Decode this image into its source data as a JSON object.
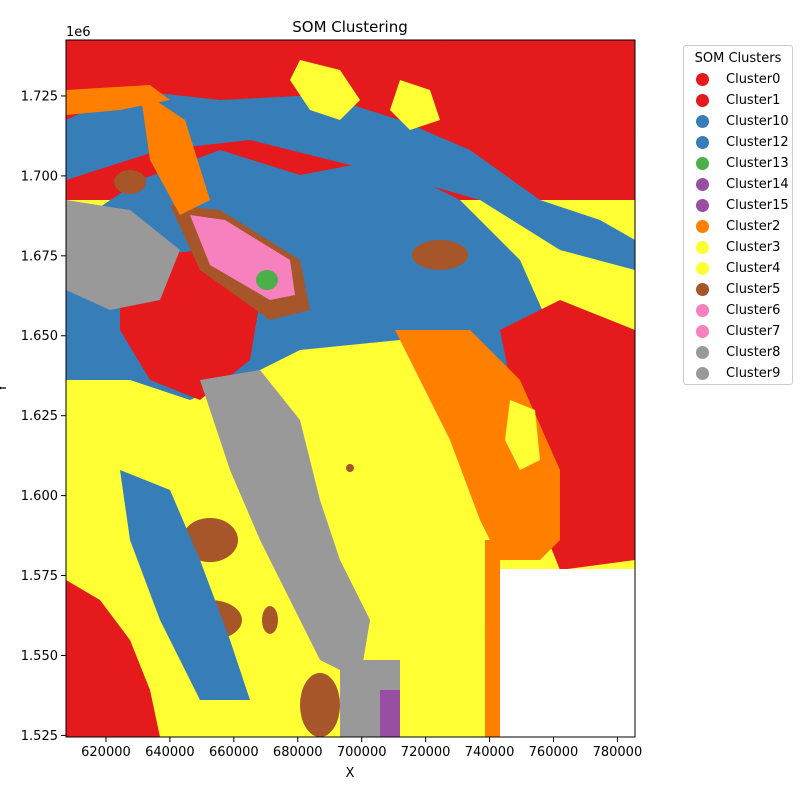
{
  "chart_data": {
    "type": "heatmap",
    "title": "SOM Clustering",
    "xlabel": "X",
    "ylabel": "Y",
    "xlim": [
      607500,
      785500
    ],
    "ylim": [
      1524500,
      1742500
    ],
    "y_offset_text": "1e6",
    "x_ticks": [
      620000,
      640000,
      660000,
      680000,
      700000,
      720000,
      740000,
      760000,
      780000
    ],
    "x_tick_labels": [
      "620000",
      "640000",
      "660000",
      "680000",
      "700000",
      "720000",
      "740000",
      "760000",
      "780000"
    ],
    "y_ticks": [
      1525000,
      1550000,
      1575000,
      1600000,
      1625000,
      1650000,
      1675000,
      1700000,
      1725000
    ],
    "y_tick_labels": [
      "1.525",
      "1.550",
      "1.575",
      "1.600",
      "1.625",
      "1.650",
      "1.675",
      "1.700",
      "1.725"
    ],
    "no_data_region": {
      "x": [
        743000,
        785500
      ],
      "y": [
        1524500,
        1577000
      ]
    },
    "legend": {
      "title": "SOM Clusters",
      "placement": "outside-right",
      "entries": [
        {
          "label": "Cluster0",
          "color": "#e41a1c"
        },
        {
          "label": "Cluster1",
          "color": "#e41a1c"
        },
        {
          "label": "Cluster10",
          "color": "#377eb8"
        },
        {
          "label": "Cluster12",
          "color": "#377eb8"
        },
        {
          "label": "Cluster13",
          "color": "#4daf4a"
        },
        {
          "label": "Cluster14",
          "color": "#984ea3"
        },
        {
          "label": "Cluster15",
          "color": "#984ea3"
        },
        {
          "label": "Cluster2",
          "color": "#ff7f00"
        },
        {
          "label": "Cluster3",
          "color": "#ffff33"
        },
        {
          "label": "Cluster4",
          "color": "#ffff33"
        },
        {
          "label": "Cluster5",
          "color": "#a65628"
        },
        {
          "label": "Cluster6",
          "color": "#f781bf"
        },
        {
          "label": "Cluster7",
          "color": "#f781bf"
        },
        {
          "label": "Cluster8",
          "color": "#999999"
        },
        {
          "label": "Cluster9",
          "color": "#999999"
        }
      ]
    }
  }
}
